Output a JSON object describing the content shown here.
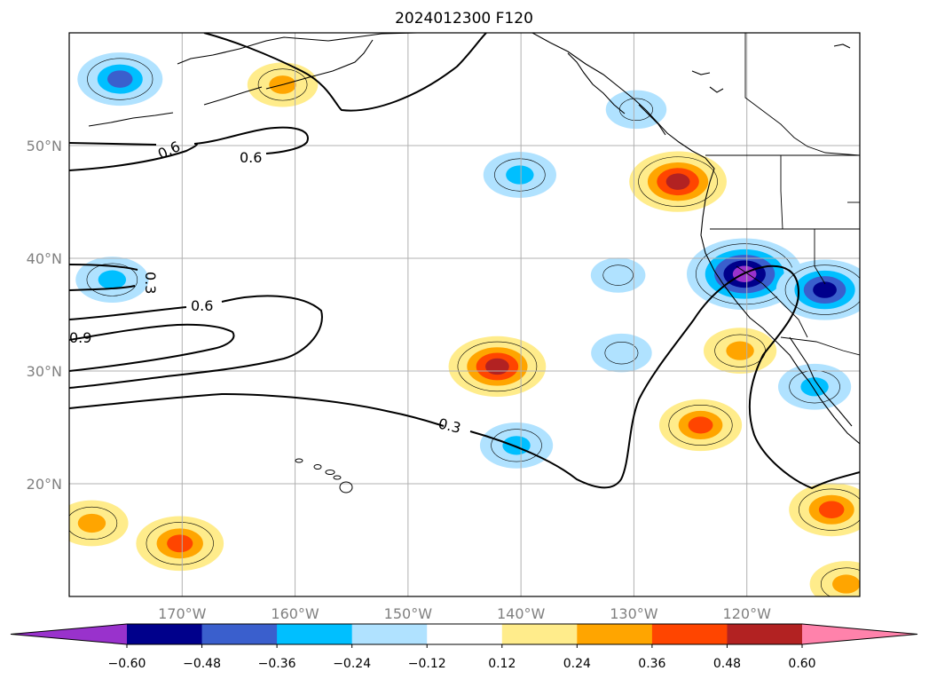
{
  "chart_data": {
    "type": "contour-map",
    "title": "2024012300 F120",
    "x_axis": {
      "tick_labels": [
        "170°W",
        "160°W",
        "150°W",
        "140°W",
        "130°W",
        "120°W"
      ],
      "tick_values": [
        -170,
        -160,
        -150,
        -140,
        -130,
        -120
      ],
      "range": [
        -180,
        -110
      ]
    },
    "y_axis": {
      "tick_labels": [
        "20°N",
        "30°N",
        "40°N",
        "50°N"
      ],
      "tick_values": [
        20,
        30,
        40,
        50
      ],
      "range": [
        10,
        60
      ]
    },
    "grid": true,
    "colorbar": {
      "orientation": "horizontal",
      "extend": "both",
      "tick_labels": [
        "−0.60",
        "−0.48",
        "−0.36",
        "−0.24",
        "−0.12",
        "0.12",
        "0.24",
        "0.36",
        "0.48",
        "0.60"
      ],
      "levels": [
        -0.6,
        -0.48,
        -0.36,
        -0.24,
        -0.12,
        0.12,
        0.24,
        0.36,
        0.48,
        0.6
      ],
      "colors": [
        "#9932cc",
        "#00008b",
        "#3a5fcd",
        "#00bfff",
        "#b0e2ff",
        "#ffffff",
        "#ffec8b",
        "#ffa500",
        "#ff4500",
        "#b22222",
        "#ff82ab"
      ]
    },
    "contour_labels": [
      "0.6",
      "0.6",
      "0.3",
      "0.6",
      "0.9",
      "0.3"
    ],
    "filled_blobs": [
      {
        "lon": -175.5,
        "lat": 55.9,
        "peak": -0.4
      },
      {
        "lon": -161.1,
        "lat": 55.4,
        "peak": 0.28
      },
      {
        "lon": -140.1,
        "lat": 47.4,
        "peak": -0.3
      },
      {
        "lon": -126.1,
        "lat": 46.8,
        "peak": 0.5
      },
      {
        "lon": -176.2,
        "lat": 38.1,
        "peak": -0.3
      },
      {
        "lon": -129.8,
        "lat": 53.2,
        "peak": -0.2
      },
      {
        "lon": -120.2,
        "lat": 38.6,
        "peak": -0.65
      },
      {
        "lon": -113.1,
        "lat": 37.2,
        "peak": -0.5
      },
      {
        "lon": -131.4,
        "lat": 38.5,
        "peak": -0.15
      },
      {
        "lon": -120.6,
        "lat": 31.8,
        "peak": 0.3
      },
      {
        "lon": -142.1,
        "lat": 30.4,
        "peak": 0.5
      },
      {
        "lon": -131.1,
        "lat": 31.6,
        "peak": -0.2
      },
      {
        "lon": -114.0,
        "lat": 28.6,
        "peak": -0.3
      },
      {
        "lon": -124.1,
        "lat": 25.2,
        "peak": 0.38
      },
      {
        "lon": -140.4,
        "lat": 23.4,
        "peak": -0.3
      },
      {
        "lon": -112.5,
        "lat": 17.7,
        "peak": 0.4
      },
      {
        "lon": -178.0,
        "lat": 16.5,
        "peak": 0.3
      },
      {
        "lon": -170.2,
        "lat": 14.7,
        "peak": 0.42
      },
      {
        "lon": -111.2,
        "lat": 11.1,
        "peak": 0.3
      }
    ]
  }
}
